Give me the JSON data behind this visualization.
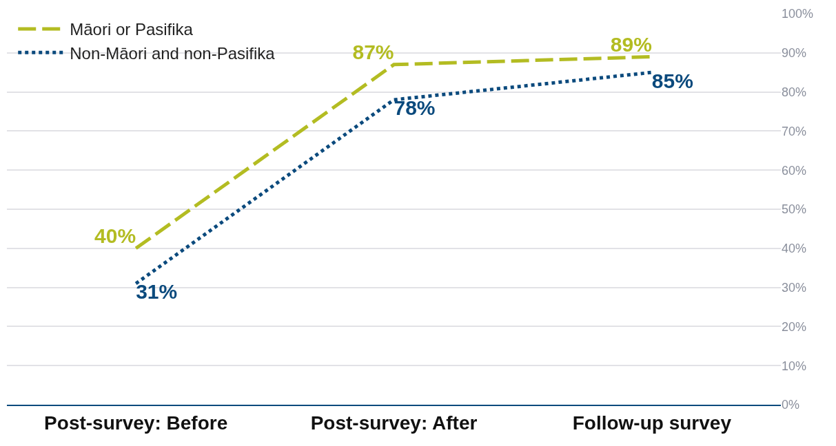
{
  "chart_data": {
    "type": "line",
    "categories": [
      "Post-survey: Before",
      "Post-survey: After",
      "Follow-up survey"
    ],
    "series": [
      {
        "name": "Māori or Pasifika",
        "color": "#b3bc22",
        "line_style": "dashed",
        "values": [
          40,
          87,
          89
        ],
        "value_labels": [
          "40%",
          "87%",
          "89%"
        ]
      },
      {
        "name": "Non-Māori and non-Pasifika",
        "color": "#0b4a7d",
        "line_style": "dotted",
        "values": [
          31,
          78,
          85
        ],
        "value_labels": [
          "31%",
          "78%",
          "85%"
        ]
      }
    ],
    "ylim": [
      0,
      100
    ],
    "yticks": [
      {
        "value": 0,
        "label": "0%"
      },
      {
        "value": 10,
        "label": "10%"
      },
      {
        "value": 20,
        "label": "20%"
      },
      {
        "value": 30,
        "label": "30%"
      },
      {
        "value": 40,
        "label": "40%"
      },
      {
        "value": 50,
        "label": "50%"
      },
      {
        "value": 60,
        "label": "60%"
      },
      {
        "value": 70,
        "label": "70%"
      },
      {
        "value": 80,
        "label": "80%"
      },
      {
        "value": 90,
        "label": "90%"
      },
      {
        "value": 100,
        "label": "100%"
      }
    ],
    "grid": "y",
    "legend": "top left",
    "marker": "none"
  }
}
